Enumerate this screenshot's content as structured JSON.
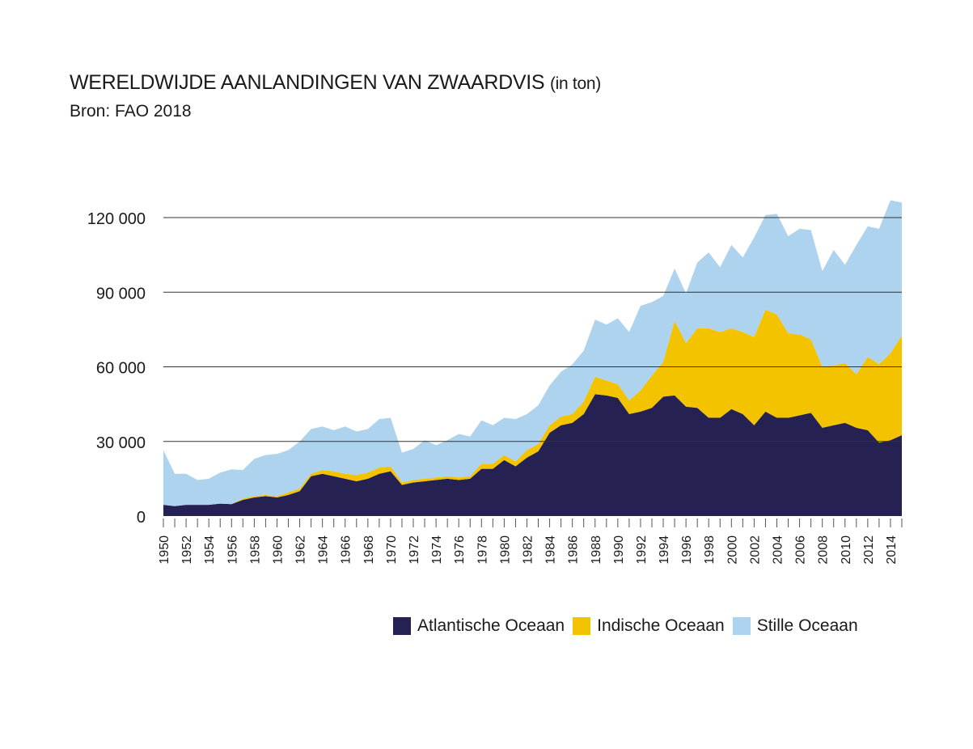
{
  "header": {
    "title": "WERELDWIJDE AANLANDINGEN VAN ZWAARDVIS",
    "title_unit": "(in ton)",
    "source": "Bron: FAO 2018"
  },
  "colors": {
    "atlantic": "#252152",
    "indian": "#f3c300",
    "pacific": "#aed3ef",
    "gridline": "#333333",
    "text": "#1a1a1a"
  },
  "chart_data": {
    "type": "area",
    "stacked": true,
    "title": "WERELDWIJDE AANLANDINGEN VAN ZWAARDVIS (in ton)",
    "subtitle": "Bron: FAO 2018",
    "xlabel": "",
    "ylabel": "",
    "ylim": [
      0,
      120000
    ],
    "yticks": [
      0,
      30000,
      60000,
      90000,
      120000
    ],
    "ytick_labels": [
      "0",
      "30 000",
      "60 000",
      "90 000",
      "120 000"
    ],
    "xtick_labels": [
      "1950",
      "1952",
      "1954",
      "1956",
      "1958",
      "1960",
      "1962",
      "1964",
      "1966",
      "1968",
      "1970",
      "1972",
      "1974",
      "1976",
      "1978",
      "1980",
      "1982",
      "1984",
      "1986",
      "1988",
      "1990",
      "1992",
      "1994",
      "1996",
      "1998",
      "2000",
      "2002",
      "2004",
      "2006",
      "2008",
      "2010",
      "2012",
      "2014"
    ],
    "grid": "horizontal",
    "legend_position": "bottom-right",
    "x": [
      1950,
      1951,
      1952,
      1953,
      1954,
      1955,
      1956,
      1957,
      1958,
      1959,
      1960,
      1961,
      1962,
      1963,
      1964,
      1965,
      1966,
      1967,
      1968,
      1969,
      1970,
      1971,
      1972,
      1973,
      1974,
      1975,
      1976,
      1977,
      1978,
      1979,
      1980,
      1981,
      1982,
      1983,
      1984,
      1985,
      1986,
      1987,
      1988,
      1989,
      1990,
      1991,
      1992,
      1993,
      1994,
      1995,
      1996,
      1997,
      1998,
      1999,
      2000,
      2001,
      2002,
      2003,
      2004,
      2005,
      2006,
      2007,
      2008,
      2009,
      2010,
      2011,
      2012,
      2013,
      2014,
      2015
    ],
    "series": [
      {
        "name": "Atlantische Oceaan",
        "color": "#252152",
        "values": [
          4500,
          4000,
          4500,
          4500,
          4500,
          5000,
          4800,
          6500,
          7500,
          8000,
          7500,
          8500,
          10000,
          16000,
          17000,
          16000,
          15000,
          14000,
          15000,
          17000,
          18000,
          12500,
          13500,
          14000,
          14500,
          15000,
          14500,
          15000,
          19000,
          19000,
          22500,
          20000,
          23500,
          26000,
          33500,
          36500,
          37500,
          41000,
          49000,
          48500,
          47500,
          41000,
          42000,
          43500,
          48000,
          48500,
          44000,
          43500,
          39500,
          39500,
          43000,
          41000,
          36500,
          42000,
          39500,
          39500,
          40500,
          41500,
          35500,
          36500,
          37500,
          35500,
          34500,
          29500,
          30500,
          32500
        ]
      },
      {
        "name": "Indische Oceaan",
        "color": "#f3c300",
        "values": [
          0,
          0,
          0,
          0,
          0,
          0,
          0,
          500,
          500,
          500,
          500,
          1000,
          1000,
          1000,
          1500,
          2000,
          2000,
          2500,
          2500,
          2500,
          2000,
          1000,
          1000,
          1000,
          1000,
          1000,
          1000,
          1000,
          2000,
          2000,
          2000,
          2000,
          3000,
          3000,
          3000,
          3500,
          3500,
          5000,
          7000,
          6000,
          5500,
          5500,
          8500,
          13000,
          14000,
          30000,
          25500,
          32000,
          36000,
          34500,
          32500,
          33000,
          35500,
          41000,
          41500,
          34000,
          32500,
          29500,
          24500,
          24000,
          24000,
          21500,
          29500,
          31500,
          35000,
          40000
        ]
      },
      {
        "name": "Stille Oceaan",
        "color": "#aed3ef",
        "values": [
          22000,
          13000,
          12500,
          10000,
          10500,
          12500,
          14000,
          11500,
          15000,
          16000,
          17000,
          17000,
          19000,
          18000,
          17500,
          16500,
          19000,
          17500,
          17500,
          19500,
          19500,
          12000,
          12500,
          15500,
          13000,
          14500,
          17500,
          16000,
          17500,
          15500,
          15000,
          17000,
          14500,
          15500,
          16000,
          18000,
          20000,
          20500,
          23000,
          22500,
          26500,
          27500,
          34000,
          29500,
          26500,
          21000,
          20000,
          26500,
          30500,
          26000,
          33500,
          30000,
          40000,
          38000,
          40500,
          39000,
          42500,
          44000,
          38500,
          46500,
          39500,
          52000,
          52500,
          54500,
          61500,
          53500
        ]
      }
    ]
  }
}
